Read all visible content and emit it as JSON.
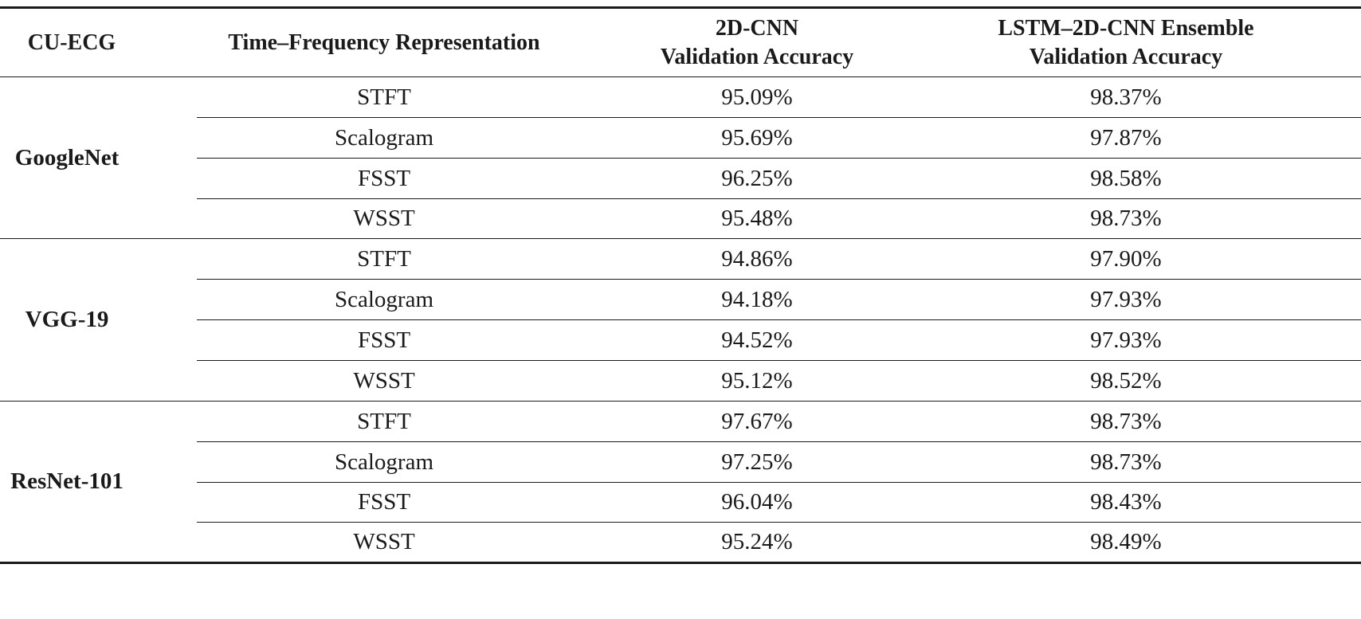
{
  "headers": {
    "dataset": "CU-ECG",
    "representation": "Time–Frequency Representation",
    "cnn_line1": "2D-CNN",
    "cnn_line2": "Validation Accuracy",
    "ensemble_line1": "LSTM–2D-CNN Ensemble",
    "ensemble_line2": "Validation Accuracy"
  },
  "groups": [
    {
      "model": "GoogleNet",
      "rows": [
        {
          "representation": "STFT",
          "cnn": "95.09%",
          "ensemble": "98.37%"
        },
        {
          "representation": "Scalogram",
          "cnn": "95.69%",
          "ensemble": "97.87%"
        },
        {
          "representation": "FSST",
          "cnn": "96.25%",
          "ensemble": "98.58%"
        },
        {
          "representation": "WSST",
          "cnn": "95.48%",
          "ensemble": "98.73%"
        }
      ]
    },
    {
      "model": "VGG-19",
      "rows": [
        {
          "representation": "STFT",
          "cnn": "94.86%",
          "ensemble": "97.90%"
        },
        {
          "representation": "Scalogram",
          "cnn": "94.18%",
          "ensemble": "97.93%"
        },
        {
          "representation": "FSST",
          "cnn": "94.52%",
          "ensemble": "97.93%"
        },
        {
          "representation": "WSST",
          "cnn": "95.12%",
          "ensemble": "98.52%"
        }
      ]
    },
    {
      "model": "ResNet-101",
      "rows": [
        {
          "representation": "STFT",
          "cnn": "97.67%",
          "ensemble": "98.73%"
        },
        {
          "representation": "Scalogram",
          "cnn": "97.25%",
          "ensemble": "98.73%"
        },
        {
          "representation": "FSST",
          "cnn": "96.04%",
          "ensemble": "98.43%"
        },
        {
          "representation": "WSST",
          "cnn": "95.24%",
          "ensemble": "98.49%"
        }
      ]
    }
  ]
}
